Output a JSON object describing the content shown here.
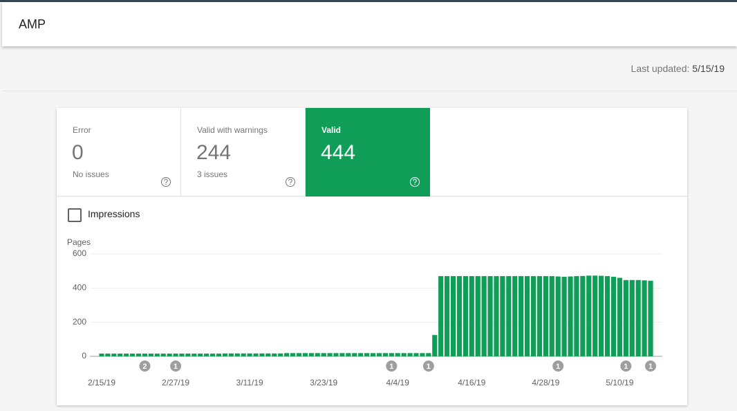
{
  "header": {
    "title": "AMP"
  },
  "last_updated": {
    "label": "Last updated:",
    "date": "5/15/19"
  },
  "summary": [
    {
      "label": "Error",
      "count": 0,
      "note": "No issues"
    },
    {
      "label": "Valid with warnings",
      "count": 244,
      "note": "3 issues"
    },
    {
      "label": "Valid",
      "count": 444
    }
  ],
  "impressions": {
    "label": "Impressions"
  },
  "chart_data": {
    "type": "bar",
    "ylabel": "Pages",
    "ylim": [
      0,
      600
    ],
    "yticks": [
      0,
      200,
      400,
      600
    ],
    "grid": true,
    "color": "#0f9d58",
    "categories": [
      "2/15/19",
      null,
      null,
      null,
      null,
      null,
      null,
      null,
      null,
      null,
      null,
      null,
      "2/27/19",
      null,
      null,
      null,
      null,
      null,
      null,
      null,
      null,
      null,
      null,
      null,
      "3/11/19",
      null,
      null,
      null,
      null,
      null,
      null,
      null,
      null,
      null,
      null,
      null,
      "3/23/19",
      null,
      null,
      null,
      null,
      null,
      null,
      null,
      null,
      null,
      null,
      null,
      "4/4/19",
      null,
      null,
      null,
      null,
      null,
      null,
      null,
      null,
      null,
      null,
      null,
      "4/16/19",
      null,
      null,
      null,
      null,
      null,
      null,
      null,
      null,
      null,
      null,
      null,
      "4/28/19",
      null,
      null,
      null,
      null,
      null,
      null,
      null,
      null,
      null,
      null,
      null,
      "5/10/19",
      null,
      null,
      null,
      null,
      null
    ],
    "values": [
      16,
      16,
      16,
      16,
      16,
      16,
      16,
      16,
      16,
      16,
      16,
      16,
      16,
      16,
      16,
      16,
      16,
      16,
      16,
      16,
      17,
      17,
      17,
      17,
      17,
      17,
      17,
      17,
      17,
      17,
      19,
      19,
      19,
      19,
      19,
      19,
      19,
      19,
      19,
      19,
      19,
      19,
      19,
      19,
      19,
      19,
      19,
      19,
      19,
      19,
      19,
      19,
      19,
      19,
      125,
      470,
      470,
      470,
      470,
      470,
      470,
      470,
      470,
      470,
      470,
      470,
      470,
      470,
      470,
      470,
      470,
      470,
      470,
      470,
      468,
      466,
      468,
      470,
      471,
      473,
      473,
      472,
      470,
      466,
      460,
      447,
      447,
      447,
      445,
      443
    ],
    "annotations": [
      null,
      null,
      null,
      null,
      null,
      null,
      null,
      2,
      null,
      null,
      null,
      null,
      1,
      null,
      null,
      null,
      null,
      null,
      null,
      null,
      null,
      null,
      null,
      null,
      null,
      null,
      null,
      null,
      null,
      null,
      null,
      null,
      null,
      null,
      null,
      null,
      null,
      null,
      null,
      null,
      null,
      null,
      null,
      null,
      null,
      null,
      null,
      1,
      null,
      null,
      null,
      null,
      null,
      1,
      null,
      null,
      null,
      null,
      null,
      null,
      null,
      null,
      null,
      null,
      null,
      null,
      null,
      null,
      null,
      null,
      null,
      null,
      null,
      null,
      1,
      null,
      null,
      null,
      null,
      null,
      null,
      null,
      null,
      null,
      null,
      1,
      null,
      null,
      null,
      1
    ]
  }
}
